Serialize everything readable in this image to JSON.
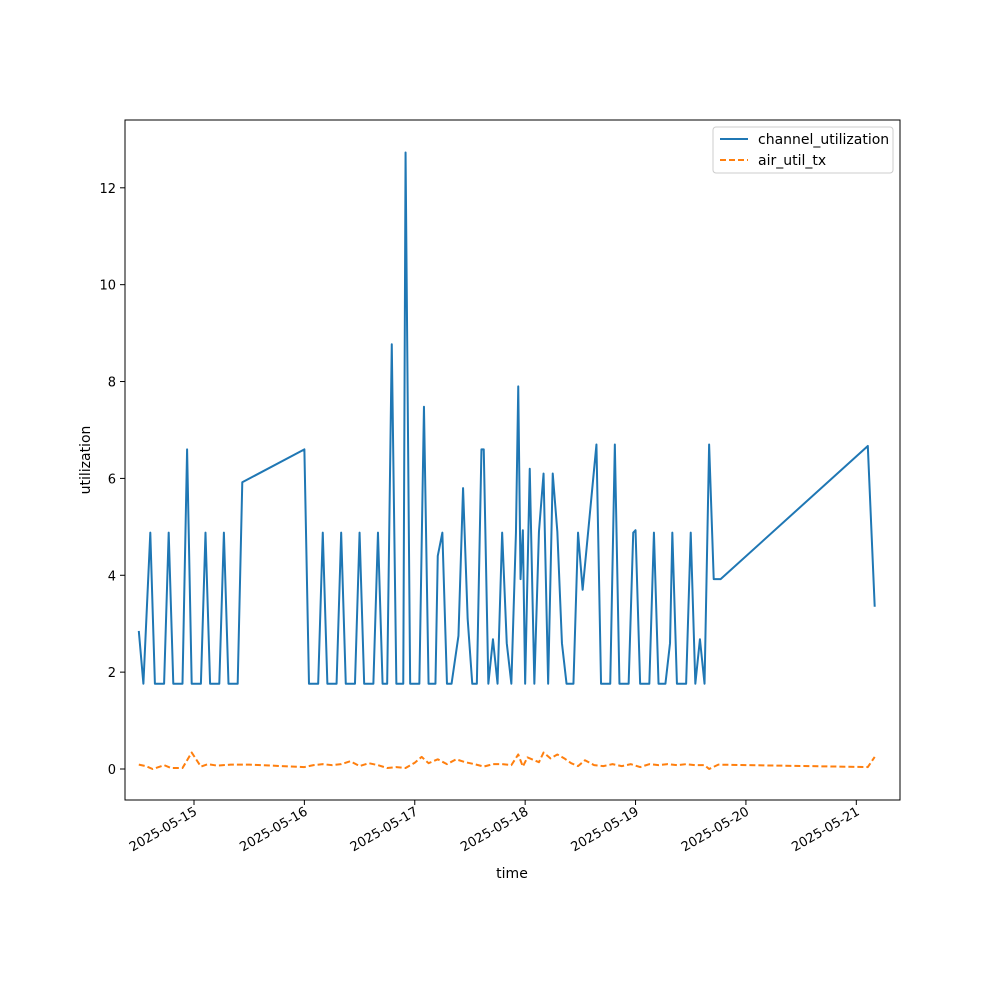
{
  "chart_data": {
    "type": "line",
    "xlabel": "time",
    "ylabel": "utilization",
    "x_ticks": [
      "2025-05-15",
      "2025-05-16",
      "2025-05-17",
      "2025-05-18",
      "2025-05-19",
      "2025-05-20",
      "2025-05-21"
    ],
    "y_ticks": [
      0,
      2,
      4,
      6,
      8,
      10,
      12
    ],
    "xlim": [
      "2025-05-14 09:00",
      "2025-05-21 09:30"
    ],
    "ylim": [
      -0.64,
      13.4
    ],
    "grid": false,
    "legend_position": "top-right",
    "colors": {
      "channel_utilization": "#1f77b4",
      "air_util_tx": "#ff7f0e"
    },
    "series": [
      {
        "name": "channel_utilization",
        "line_style": "solid",
        "points": [
          [
            "2025-05-14 12:00",
            2.85
          ],
          [
            "2025-05-14 13:00",
            1.76
          ],
          [
            "2025-05-14 14:30",
            4.88
          ],
          [
            "2025-05-14 15:30",
            1.76
          ],
          [
            "2025-05-14 17:30",
            1.76
          ],
          [
            "2025-05-14 18:30",
            4.88
          ],
          [
            "2025-05-14 19:30",
            1.76
          ],
          [
            "2025-05-14 21:30",
            1.76
          ],
          [
            "2025-05-14 22:30",
            6.6
          ],
          [
            "2025-05-14 23:30",
            1.76
          ],
          [
            "2025-05-15 01:30",
            1.76
          ],
          [
            "2025-05-15 02:30",
            4.88
          ],
          [
            "2025-05-15 03:30",
            1.76
          ],
          [
            "2025-05-15 05:30",
            1.76
          ],
          [
            "2025-05-15 06:30",
            4.88
          ],
          [
            "2025-05-15 07:30",
            1.76
          ],
          [
            "2025-05-15 09:30",
            1.76
          ],
          [
            "2025-05-15 10:30",
            5.92
          ],
          [
            "2025-05-16 00:00",
            6.6
          ],
          [
            "2025-05-16 01:00",
            1.76
          ],
          [
            "2025-05-16 03:00",
            1.76
          ],
          [
            "2025-05-16 04:00",
            4.88
          ],
          [
            "2025-05-16 05:00",
            1.76
          ],
          [
            "2025-05-16 07:00",
            1.76
          ],
          [
            "2025-05-16 08:00",
            4.88
          ],
          [
            "2025-05-16 09:00",
            1.76
          ],
          [
            "2025-05-16 11:00",
            1.76
          ],
          [
            "2025-05-16 12:00",
            4.88
          ],
          [
            "2025-05-16 13:00",
            1.76
          ],
          [
            "2025-05-16 15:00",
            1.76
          ],
          [
            "2025-05-16 16:00",
            4.88
          ],
          [
            "2025-05-16 17:00",
            1.76
          ],
          [
            "2025-05-16 18:00",
            1.76
          ],
          [
            "2025-05-16 19:00",
            8.77
          ],
          [
            "2025-05-16 20:00",
            1.76
          ],
          [
            "2025-05-16 21:30",
            1.76
          ],
          [
            "2025-05-16 22:00",
            12.73
          ],
          [
            "2025-05-16 23:00",
            1.76
          ],
          [
            "2025-05-17 01:00",
            1.76
          ],
          [
            "2025-05-17 02:00",
            7.48
          ],
          [
            "2025-05-17 03:00",
            1.76
          ],
          [
            "2025-05-17 04:30",
            1.76
          ],
          [
            "2025-05-17 05:00",
            4.4
          ],
          [
            "2025-05-17 06:00",
            4.88
          ],
          [
            "2025-05-17 07:00",
            1.76
          ],
          [
            "2025-05-17 08:00",
            1.76
          ],
          [
            "2025-05-17 09:30",
            2.75
          ],
          [
            "2025-05-17 10:30",
            5.8
          ],
          [
            "2025-05-17 11:30",
            3.1
          ],
          [
            "2025-05-17 12:30",
            1.76
          ],
          [
            "2025-05-17 13:30",
            1.76
          ],
          [
            "2025-05-17 14:30",
            6.6
          ],
          [
            "2025-05-17 15:00",
            6.6
          ],
          [
            "2025-05-17 16:00",
            1.76
          ],
          [
            "2025-05-17 17:00",
            2.68
          ],
          [
            "2025-05-17 18:00",
            1.76
          ],
          [
            "2025-05-17 19:00",
            4.88
          ],
          [
            "2025-05-17 20:00",
            2.6
          ],
          [
            "2025-05-17 21:00",
            1.76
          ],
          [
            "2025-05-17 22:00",
            4.88
          ],
          [
            "2025-05-17 22:30",
            7.9
          ],
          [
            "2025-05-17 23:00",
            3.92
          ],
          [
            "2025-05-17 23:30",
            4.93
          ],
          [
            "2025-05-18 00:00",
            1.76
          ],
          [
            "2025-05-18 01:00",
            6.2
          ],
          [
            "2025-05-18 02:00",
            1.76
          ],
          [
            "2025-05-18 03:00",
            4.9
          ],
          [
            "2025-05-18 04:00",
            6.1
          ],
          [
            "2025-05-18 05:00",
            1.76
          ],
          [
            "2025-05-18 06:00",
            6.1
          ],
          [
            "2025-05-18 07:00",
            4.9
          ],
          [
            "2025-05-18 08:00",
            2.6
          ],
          [
            "2025-05-18 09:00",
            1.76
          ],
          [
            "2025-05-18 10:30",
            1.76
          ],
          [
            "2025-05-18 11:30",
            4.88
          ],
          [
            "2025-05-18 12:30",
            3.7
          ],
          [
            "2025-05-18 15:30",
            6.7
          ],
          [
            "2025-05-18 16:30",
            1.76
          ],
          [
            "2025-05-18 18:30",
            1.76
          ],
          [
            "2025-05-18 19:30",
            6.7
          ],
          [
            "2025-05-18 20:30",
            1.76
          ],
          [
            "2025-05-18 22:30",
            1.76
          ],
          [
            "2025-05-18 23:30",
            4.88
          ],
          [
            "2025-05-19 00:00",
            4.93
          ],
          [
            "2025-05-19 01:00",
            1.76
          ],
          [
            "2025-05-19 03:00",
            1.76
          ],
          [
            "2025-05-19 04:00",
            4.88
          ],
          [
            "2025-05-19 05:00",
            1.76
          ],
          [
            "2025-05-19 06:30",
            1.76
          ],
          [
            "2025-05-19 07:30",
            2.6
          ],
          [
            "2025-05-19 08:00",
            4.88
          ],
          [
            "2025-05-19 09:00",
            1.76
          ],
          [
            "2025-05-19 11:00",
            1.76
          ],
          [
            "2025-05-19 12:00",
            4.88
          ],
          [
            "2025-05-19 13:00",
            1.76
          ],
          [
            "2025-05-19 14:00",
            2.68
          ],
          [
            "2025-05-19 15:00",
            1.76
          ],
          [
            "2025-05-19 16:00",
            6.7
          ],
          [
            "2025-05-19 17:00",
            3.92
          ],
          [
            "2025-05-19 18:30",
            3.92
          ],
          [
            "2025-05-21 02:30",
            6.67
          ],
          [
            "2025-05-21 04:00",
            3.35
          ]
        ]
      },
      {
        "name": "air_util_tx",
        "line_style": "dashed",
        "points": [
          [
            "2025-05-14 12:00",
            0.09
          ],
          [
            "2025-05-14 13:30",
            0.06
          ],
          [
            "2025-05-14 15:00",
            0.0
          ],
          [
            "2025-05-14 16:00",
            0.03
          ],
          [
            "2025-05-14 17:30",
            0.08
          ],
          [
            "2025-05-14 19:00",
            0.02
          ],
          [
            "2025-05-14 21:30",
            0.02
          ],
          [
            "2025-05-14 23:30",
            0.34
          ],
          [
            "2025-05-15 01:30",
            0.05
          ],
          [
            "2025-05-15 03:00",
            0.1
          ],
          [
            "2025-05-15 05:00",
            0.07
          ],
          [
            "2025-05-15 08:00",
            0.09
          ],
          [
            "2025-05-15 12:00",
            0.09
          ],
          [
            "2025-05-16 00:00",
            0.04
          ],
          [
            "2025-05-16 02:00",
            0.08
          ],
          [
            "2025-05-16 04:00",
            0.1
          ],
          [
            "2025-05-16 06:00",
            0.08
          ],
          [
            "2025-05-16 08:00",
            0.1
          ],
          [
            "2025-05-16 10:00",
            0.16
          ],
          [
            "2025-05-16 12:00",
            0.06
          ],
          [
            "2025-05-16 14:00",
            0.12
          ],
          [
            "2025-05-16 16:00",
            0.08
          ],
          [
            "2025-05-16 18:00",
            0.02
          ],
          [
            "2025-05-16 20:00",
            0.04
          ],
          [
            "2025-05-16 22:00",
            0.02
          ],
          [
            "2025-05-17 00:00",
            0.13
          ],
          [
            "2025-05-17 01:30",
            0.25
          ],
          [
            "2025-05-17 03:00",
            0.12
          ],
          [
            "2025-05-17 05:00",
            0.2
          ],
          [
            "2025-05-17 07:00",
            0.1
          ],
          [
            "2025-05-17 09:00",
            0.2
          ],
          [
            "2025-05-17 11:00",
            0.14
          ],
          [
            "2025-05-17 13:00",
            0.1
          ],
          [
            "2025-05-17 15:00",
            0.05
          ],
          [
            "2025-05-17 17:00",
            0.1
          ],
          [
            "2025-05-17 19:00",
            0.1
          ],
          [
            "2025-05-17 21:00",
            0.08
          ],
          [
            "2025-05-17 22:30",
            0.3
          ],
          [
            "2025-05-17 23:30",
            0.05
          ],
          [
            "2025-05-18 00:30",
            0.24
          ],
          [
            "2025-05-18 02:00",
            0.18
          ],
          [
            "2025-05-18 03:00",
            0.14
          ],
          [
            "2025-05-18 04:00",
            0.34
          ],
          [
            "2025-05-18 05:30",
            0.22
          ],
          [
            "2025-05-18 07:00",
            0.3
          ],
          [
            "2025-05-18 08:30",
            0.22
          ],
          [
            "2025-05-18 10:00",
            0.12
          ],
          [
            "2025-05-18 11:30",
            0.06
          ],
          [
            "2025-05-18 13:00",
            0.18
          ],
          [
            "2025-05-18 15:00",
            0.08
          ],
          [
            "2025-05-18 17:00",
            0.06
          ],
          [
            "2025-05-18 19:00",
            0.1
          ],
          [
            "2025-05-18 21:00",
            0.06
          ],
          [
            "2025-05-18 23:00",
            0.1
          ],
          [
            "2025-05-19 01:00",
            0.04
          ],
          [
            "2025-05-19 03:00",
            0.1
          ],
          [
            "2025-05-19 05:00",
            0.08
          ],
          [
            "2025-05-19 07:00",
            0.1
          ],
          [
            "2025-05-19 09:00",
            0.08
          ],
          [
            "2025-05-19 11:00",
            0.1
          ],
          [
            "2025-05-19 13:00",
            0.08
          ],
          [
            "2025-05-19 15:00",
            0.08
          ],
          [
            "2025-05-19 16:00",
            0.0
          ],
          [
            "2025-05-19 18:00",
            0.09
          ],
          [
            "2025-05-21 02:30",
            0.04
          ],
          [
            "2025-05-21 04:00",
            0.25
          ]
        ]
      }
    ]
  }
}
